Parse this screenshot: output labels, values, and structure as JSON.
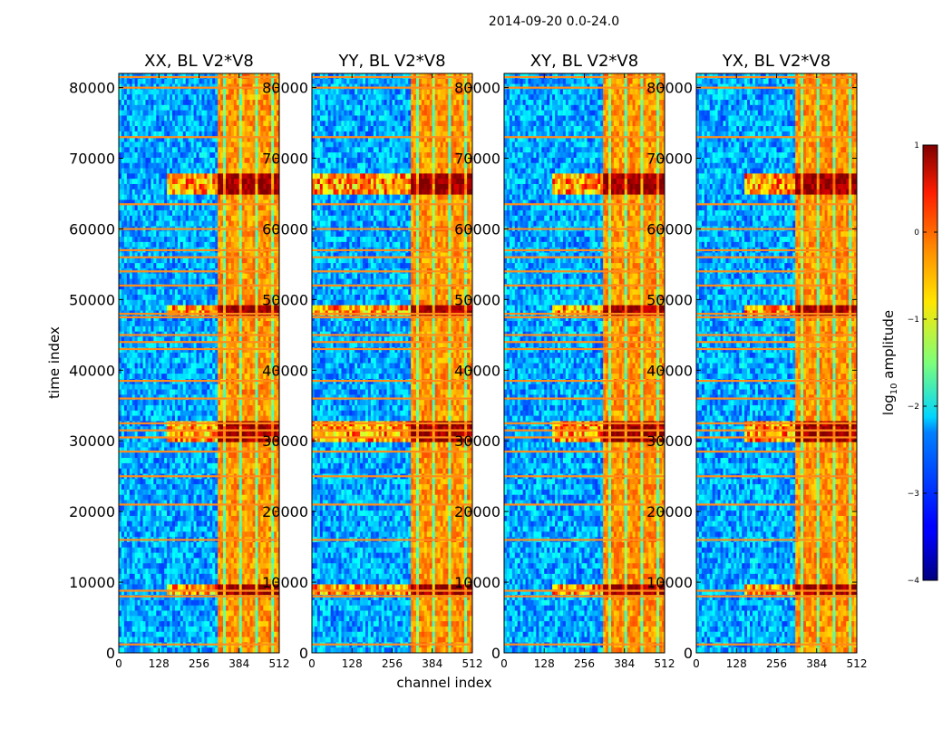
{
  "chart_data": {
    "type": "heatmap",
    "title": "2014-09-20 0.0-24.0",
    "xlabel": "channel index",
    "ylabel": "time index",
    "x_ticks": [
      "0",
      "128",
      "256",
      "384",
      "512"
    ],
    "y_ticks": [
      "0",
      "10000",
      "20000",
      "30000",
      "40000",
      "50000",
      "60000",
      "70000",
      "80000"
    ],
    "xlim": [
      0,
      512
    ],
    "ylim": [
      0,
      82000
    ],
    "panels": [
      {
        "title": "XX, BL V2*V8",
        "burst_start_channel": 320
      },
      {
        "title": "YY, BL V2*V8",
        "burst_start_channel": 320
      },
      {
        "title": "XY, BL V2*V8",
        "burst_start_channel": 320
      },
      {
        "title": "YX, BL V2*V8",
        "burst_start_channel": 320
      }
    ],
    "colorbar": {
      "label": "log10 amplitude",
      "ticks": [
        "1",
        "0",
        "−1",
        "−2",
        "−3",
        "−4"
      ],
      "vmin": -4,
      "vmax": 1,
      "colormap": "jet"
    },
    "rfi_rows": [
      1200,
      8000,
      8800,
      16000,
      21000,
      25000,
      28500,
      30500,
      31500,
      32500,
      36000,
      38500,
      43000,
      44000,
      45000,
      47500,
      48000,
      52000,
      54000,
      56000,
      57000,
      60000,
      63500,
      73000,
      80000,
      81500
    ],
    "bright_row_ranges": [
      [
        30000,
        33000
      ],
      [
        47500,
        49500
      ],
      [
        8000,
        9500
      ],
      [
        65000,
        68000
      ]
    ]
  }
}
